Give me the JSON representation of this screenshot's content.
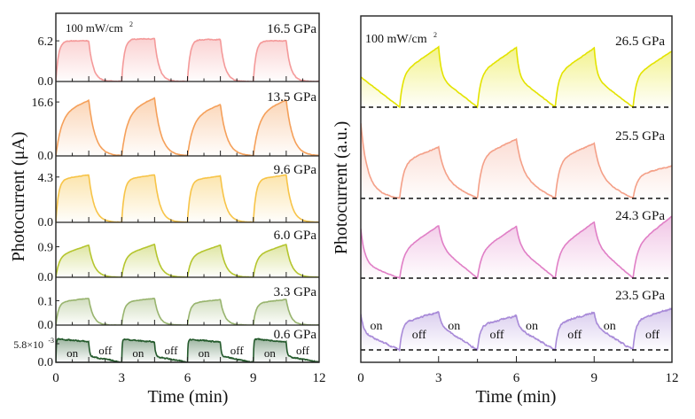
{
  "chart_data": [
    {
      "type": "line",
      "title": "",
      "xlabel": "Time (min)",
      "ylabel": "Photocurrent (μA)",
      "xlim": [
        0,
        12
      ],
      "xticks": [
        "0",
        "3",
        "6",
        "9",
        "12"
      ],
      "annotation": {
        "text": "100 mW/cm",
        "sup": "2"
      },
      "light_on_intervals": [
        [
          0,
          1.5
        ],
        [
          3,
          4.5
        ],
        [
          6,
          7.5
        ],
        [
          9,
          10.5
        ]
      ],
      "state_labels": {
        "on": "on",
        "off": "off"
      },
      "series": [
        {
          "name": "16.5 GPa",
          "color": "#f49a9a",
          "ylim": [
            0,
            10.4
          ],
          "ytick_value": 6.2,
          "ytick_label": "6.2",
          "zero_label": "0.0",
          "cycle_peaks": [
            6.2,
            6.5,
            6.4,
            6.2
          ],
          "tau_rise": 0.12,
          "rise_slope": 0.0,
          "tau_decay": 0.2,
          "decay_linear_fraction": 0.0,
          "noise": 0.015
        },
        {
          "name": "13.5 GPa",
          "color": "#f5a05a",
          "ylim": [
            0,
            22.9
          ],
          "ytick_value": 16.6,
          "ytick_label": "16.6",
          "zero_label": "0.0",
          "cycle_peaks": [
            17.1,
            17.8,
            15.8,
            17.2
          ],
          "tau_rise": 0.25,
          "rise_slope": 0.25,
          "tau_decay": 0.3,
          "decay_linear_fraction": 0.0,
          "noise": 0.006
        },
        {
          "name": "9.6 GPa",
          "color": "#f7c448",
          "ylim": [
            0,
            6.3
          ],
          "ytick_value": 4.3,
          "ytick_label": "4.3",
          "zero_label": "0.0",
          "cycle_peaks": [
            4.5,
            4.5,
            4.4,
            4.5
          ],
          "tau_rise": 0.12,
          "rise_slope": 0.1,
          "tau_decay": 0.25,
          "decay_linear_fraction": 0.0,
          "noise": 0.006
        },
        {
          "name": "6.0 GPa",
          "color": "#b5c52e",
          "ylim": [
            0,
            1.62
          ],
          "ytick_value": 0.9,
          "ytick_label": "0.9",
          "zero_label": "0.0",
          "cycle_peaks": [
            0.95,
            0.97,
            0.95,
            0.97
          ],
          "tau_rise": 0.15,
          "rise_slope": 0.35,
          "tau_decay": 0.25,
          "decay_linear_fraction": 0.0,
          "noise": 0.006
        },
        {
          "name": "3.3 GPa",
          "color": "#98b46e",
          "ylim": [
            0,
            0.196
          ],
          "ytick_value": 0.1,
          "ytick_label": "0.1",
          "ytick_sup": "",
          "zero_label": "0.0",
          "cycle_peaks": [
            0.11,
            0.11,
            0.105,
            0.105
          ],
          "tau_rise": 0.12,
          "rise_slope": 0.15,
          "tau_decay": 0.2,
          "decay_linear_fraction": 0.0,
          "noise": 0.015
        },
        {
          "name": "0.6 GPa",
          "color": "#245a2c",
          "ylim": [
            0,
            0.0116
          ],
          "ytick_value": 0.0058,
          "ytick_label": "5.8×10",
          "ytick_sup": "-3",
          "zero_label": "0.0",
          "cycle_peaks": [
            0.0064,
            0.0063,
            0.0063,
            0.0064
          ],
          "tau_rise": 0.02,
          "rise_slope": -0.15,
          "tau_decay": 0.04,
          "decay_linear_fraction": 0.3,
          "noise": 0.05,
          "show_state_labels": true
        }
      ]
    },
    {
      "type": "line",
      "title": "",
      "xlabel": "Time (min)",
      "ylabel": "Photocurrent (a.u.)",
      "xlim": [
        0,
        12
      ],
      "xticks": [
        "0",
        "3",
        "6",
        "9",
        "12"
      ],
      "annotation": {
        "text": "100 mW/cm",
        "sup": "2"
      },
      "light_on_intervals": [
        [
          1.5,
          3
        ],
        [
          4.5,
          6
        ],
        [
          7.5,
          9
        ],
        [
          10.5,
          12
        ]
      ],
      "state_labels": {
        "on": "on",
        "off": "off"
      },
      "baseline_style": "dashed",
      "series": [
        {
          "name": "26.5 GPa",
          "color": "#e3e300",
          "cycle_peaks": [
            1.0,
            0.99,
            0.98,
            0.93
          ],
          "initial_value": 0.5,
          "initial_linear_fraction": 1.0,
          "tau_rise": 0.12,
          "rise_slope": 0.45,
          "tau_decay": 0.1,
          "decay_linear_fraction": 0.5,
          "noise": 0.008
        },
        {
          "name": "25.5 GPa",
          "color": "#f4a088",
          "cycle_peaks": [
            0.85,
            0.98,
            0.91,
            0.54
          ],
          "initial_value": 1.25,
          "initial_linear_fraction": 0.1,
          "tau_rise": 0.15,
          "rise_slope": 0.3,
          "tau_decay": 0.25,
          "decay_linear_fraction": 0.35,
          "noise": 0.012
        },
        {
          "name": "24.3 GPa",
          "color": "#e07fc6",
          "cycle_peaks": [
            0.87,
            0.86,
            0.93,
            1.03
          ],
          "initial_value": 0.82,
          "initial_linear_fraction": 0.3,
          "tau_rise": 0.15,
          "rise_slope": 0.5,
          "tau_decay": 0.15,
          "decay_linear_fraction": 0.6,
          "noise": 0.008
        },
        {
          "name": "23.5 GPa",
          "color": "#a88ad8",
          "cycle_peaks": [
            0.63,
            0.57,
            0.62,
            0.69
          ],
          "initial_value": 0.6,
          "initial_linear_fraction": 0.5,
          "tau_rise": 0.1,
          "rise_slope": 0.3,
          "tau_decay": 0.1,
          "decay_linear_fraction": 0.65,
          "noise": 0.035,
          "show_state_labels": true
        }
      ]
    }
  ]
}
